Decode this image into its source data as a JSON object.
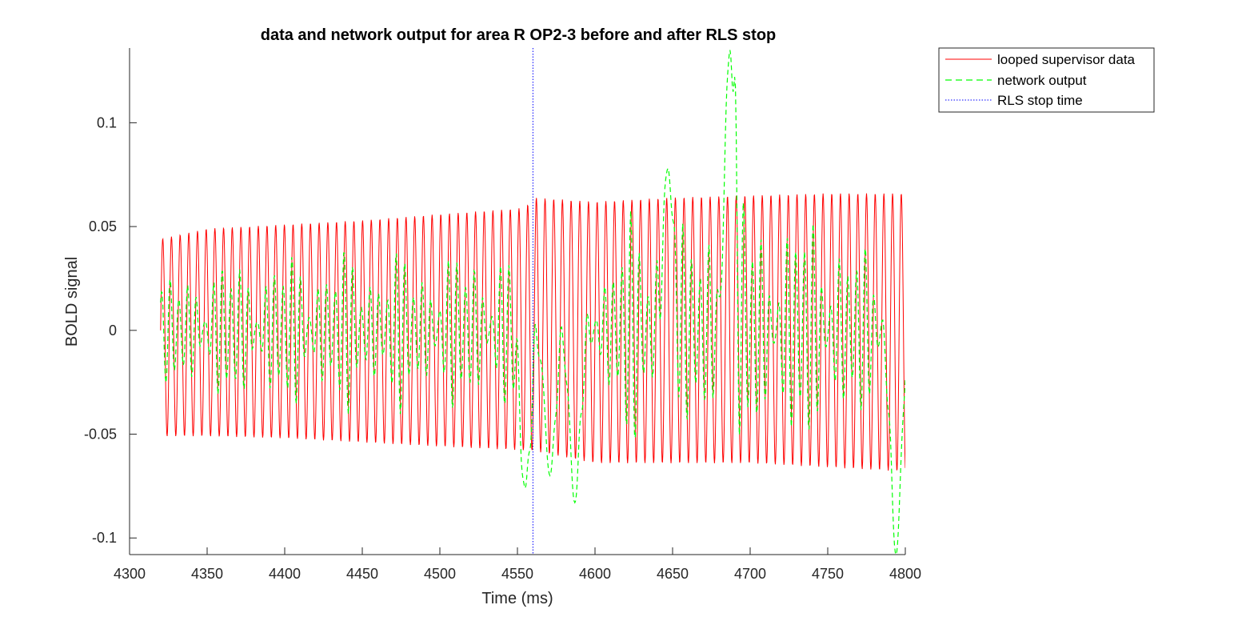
{
  "chart_data": {
    "type": "line",
    "title": "data and network output for area R OP2-3 before and after RLS stop",
    "xlabel": "Time (ms)",
    "ylabel": "BOLD signal",
    "xlim": [
      4300,
      4800
    ],
    "ylim": [
      -0.108,
      0.136
    ],
    "x_ticks": [
      4300,
      4350,
      4400,
      4450,
      4500,
      4550,
      4600,
      4650,
      4700,
      4750,
      4800
    ],
    "y_ticks": [
      -0.1,
      -0.05,
      0,
      0.05,
      0.1
    ],
    "x_tick_labels": [
      "4300",
      "4350",
      "4400",
      "4450",
      "4500",
      "4550",
      "4600",
      "4650",
      "4700",
      "4750",
      "4800"
    ],
    "y_tick_labels": [
      "-0.1",
      "-0.05",
      "0",
      "0.05",
      "0.1"
    ],
    "grid": false,
    "legend_position": "outside-top-right",
    "series": [
      {
        "name": "looped supervisor data",
        "color": "#ff0000",
        "style": "solid",
        "x_range": [
          4320,
          4800
        ],
        "period_ms": 5.6,
        "peaks": [
          [
            4320,
            0.044
          ],
          [
            4350,
            0.049
          ],
          [
            4400,
            0.051
          ],
          [
            4450,
            0.053
          ],
          [
            4500,
            0.056
          ],
          [
            4555,
            0.059
          ],
          [
            4560,
            0.064
          ],
          [
            4600,
            0.062
          ],
          [
            4650,
            0.064
          ],
          [
            4700,
            0.065
          ],
          [
            4750,
            0.066
          ],
          [
            4800,
            0.066
          ]
        ],
        "troughs": [
          [
            4320,
            -0.051
          ],
          [
            4350,
            -0.051
          ],
          [
            4400,
            -0.052
          ],
          [
            4450,
            -0.054
          ],
          [
            4500,
            -0.056
          ],
          [
            4560,
            -0.058
          ],
          [
            4600,
            -0.064
          ],
          [
            4650,
            -0.064
          ],
          [
            4700,
            -0.064
          ],
          [
            4750,
            -0.066
          ],
          [
            4800,
            -0.068
          ]
        ]
      },
      {
        "name": "network output",
        "color": "#00ff00",
        "style": "dashed",
        "x_range": [
          4320,
          4800
        ],
        "envelope": [
          [
            4320,
            0.025
          ],
          [
            4340,
            0.035
          ],
          [
            4400,
            0.04
          ],
          [
            4450,
            0.042
          ],
          [
            4500,
            0.04
          ],
          [
            4555,
            0.045
          ],
          [
            4580,
            0.015
          ],
          [
            4600,
            0.025
          ],
          [
            4615,
            0.06
          ],
          [
            4640,
            0.055
          ],
          [
            4647,
            0.078
          ],
          [
            4660,
            0.045
          ],
          [
            4675,
            0.07
          ],
          [
            4680,
            0.05
          ],
          [
            4687,
            0.135
          ],
          [
            4700,
            0.06
          ],
          [
            4750,
            0.06
          ],
          [
            4790,
            0.03
          ],
          [
            4800,
            0.02
          ]
        ],
        "spikes": [
          [
            4555,
            -0.076
          ],
          [
            4571,
            -0.07
          ],
          [
            4587,
            -0.083
          ],
          [
            4647,
            0.078
          ],
          [
            4687,
            0.135
          ],
          [
            4794,
            -0.108
          ]
        ]
      },
      {
        "name": "RLS stop time",
        "color": "#0000ff",
        "style": "dotted",
        "x": 4560
      }
    ]
  }
}
